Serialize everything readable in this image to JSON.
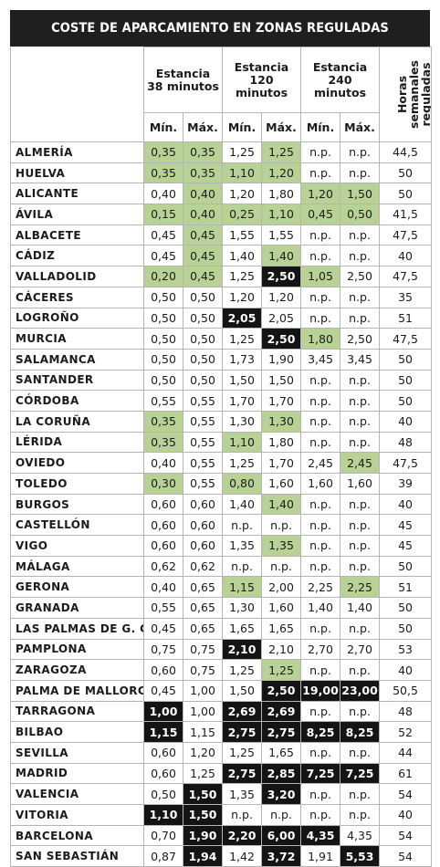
{
  "title": "COSTE DE APARCAMIENTO EN ZONAS REGULADAS",
  "headers": {
    "groups": [
      "Estancia\n38 minutos",
      "Estancia\n120 minutos",
      "Estancia\n240\nminutos"
    ],
    "sub": [
      "Mín.",
      "Máx.",
      "Mín.",
      "Máx.",
      "Mín.",
      "Máx."
    ],
    "hours": "Horas\nsemanales\nreguladas"
  },
  "highlight_legend": {
    "g": "#b8d296",
    "b": "#141414"
  },
  "rows": [
    {
      "city": "ALMERÍA",
      "v": [
        "0,35",
        "0,35",
        "1,25",
        "1,25",
        "n.p.",
        "n.p.",
        "44,5"
      ],
      "h": [
        "g",
        "g",
        "",
        "g",
        "",
        "",
        ""
      ]
    },
    {
      "city": "HUELVA",
      "v": [
        "0,35",
        "0,35",
        "1,10",
        "1,20",
        "n.p.",
        "n.p.",
        "50"
      ],
      "h": [
        "g",
        "g",
        "g",
        "g",
        "",
        "",
        ""
      ]
    },
    {
      "city": "ALICANTE",
      "v": [
        "0,40",
        "0,40",
        "1,20",
        "1,80",
        "1,20",
        "1,50",
        "50"
      ],
      "h": [
        "",
        "g",
        "",
        "",
        "g",
        "g",
        ""
      ]
    },
    {
      "city": "ÁVILA",
      "v": [
        "0,15",
        "0,40",
        "0,25",
        "1,10",
        "0,45",
        "0,50",
        "41,5"
      ],
      "h": [
        "g",
        "g",
        "g",
        "g",
        "g",
        "g",
        ""
      ]
    },
    {
      "city": "ALBACETE",
      "v": [
        "0,45",
        "0,45",
        "1,55",
        "1,55",
        "n.p.",
        "n.p.",
        "47,5"
      ],
      "h": [
        "",
        "g",
        "",
        "",
        "",
        "",
        ""
      ]
    },
    {
      "city": "CÁDIZ",
      "v": [
        "0,45",
        "0,45",
        "1,40",
        "1,40",
        "n.p.",
        "n.p.",
        "40"
      ],
      "h": [
        "",
        "g",
        "",
        "g",
        "",
        "",
        ""
      ]
    },
    {
      "city": "VALLADOLID",
      "v": [
        "0,20",
        "0,45",
        "1,25",
        "2,50",
        "1,05",
        "2,50",
        "47,5"
      ],
      "h": [
        "g",
        "g",
        "",
        "b",
        "g",
        "",
        ""
      ]
    },
    {
      "city": "CÁCERES",
      "v": [
        "0,50",
        "0,50",
        "1,20",
        "1,20",
        "n.p.",
        "n.p.",
        "35"
      ],
      "h": [
        "",
        "",
        "",
        "",
        "",
        "",
        ""
      ]
    },
    {
      "city": "LOGROÑO",
      "v": [
        "0,50",
        "0,50",
        "2,05",
        "2,05",
        "n.p.",
        "n.p.",
        "51"
      ],
      "h": [
        "",
        "",
        "b",
        "",
        "",
        "",
        ""
      ]
    },
    {
      "city": "MURCIA",
      "v": [
        "0,50",
        "0,50",
        "1,25",
        "2,50",
        "1,80",
        "2,50",
        "47,5"
      ],
      "h": [
        "",
        "",
        "",
        "b",
        "g",
        "",
        ""
      ]
    },
    {
      "city": "SALAMANCA",
      "v": [
        "0,50",
        "0,50",
        "1,73",
        "1,90",
        "3,45",
        "3,45",
        "50"
      ],
      "h": [
        "",
        "",
        "",
        "",
        "",
        "",
        ""
      ]
    },
    {
      "city": "SANTANDER",
      "v": [
        "0,50",
        "0,50",
        "1,50",
        "1,50",
        "n.p.",
        "n.p.",
        "50"
      ],
      "h": [
        "",
        "",
        "",
        "",
        "",
        "",
        ""
      ]
    },
    {
      "city": "CÓRDOBA",
      "v": [
        "0,55",
        "0,55",
        "1,70",
        "1,70",
        "n.p.",
        "n.p.",
        "50"
      ],
      "h": [
        "",
        "",
        "",
        "",
        "",
        "",
        ""
      ]
    },
    {
      "city": "LA CORUÑA",
      "v": [
        "0,35",
        "0,55",
        "1,30",
        "1,30",
        "n.p.",
        "n.p.",
        "40"
      ],
      "h": [
        "g",
        "",
        "",
        "g",
        "",
        "",
        ""
      ]
    },
    {
      "city": "LÉRIDA",
      "v": [
        "0,35",
        "0,55",
        "1,10",
        "1,80",
        "n.p.",
        "n.p.",
        "48"
      ],
      "h": [
        "g",
        "",
        "g",
        "",
        "",
        "",
        ""
      ]
    },
    {
      "city": "OVIEDO",
      "v": [
        "0,40",
        "0,55",
        "1,25",
        "1,70",
        "2,45",
        "2,45",
        "47,5"
      ],
      "h": [
        "",
        "",
        "",
        "",
        "",
        "g",
        ""
      ]
    },
    {
      "city": "TOLEDO",
      "v": [
        "0,30",
        "0,55",
        "0,80",
        "1,60",
        "1,60",
        "1,60",
        "39"
      ],
      "h": [
        "g",
        "",
        "g",
        "",
        "",
        "",
        ""
      ]
    },
    {
      "city": "BURGOS",
      "v": [
        "0,60",
        "0,60",
        "1,40",
        "1,40",
        "n.p.",
        "n.p.",
        "40"
      ],
      "h": [
        "",
        "",
        "",
        "g",
        "",
        "",
        ""
      ]
    },
    {
      "city": "CASTELLÓN",
      "v": [
        "0,60",
        "0,60",
        "n.p.",
        "n.p.",
        "n.p.",
        "n.p.",
        "45"
      ],
      "h": [
        "",
        "",
        "",
        "",
        "",
        "",
        ""
      ]
    },
    {
      "city": "VIGO",
      "v": [
        "0,60",
        "0,60",
        "1,35",
        "1,35",
        "n.p.",
        "n.p.",
        "45"
      ],
      "h": [
        "",
        "",
        "",
        "g",
        "",
        "",
        ""
      ]
    },
    {
      "city": "MÁLAGA",
      "v": [
        "0,62",
        "0,62",
        "n.p.",
        "n.p.",
        "n.p.",
        "n.p.",
        "50"
      ],
      "h": [
        "",
        "",
        "",
        "",
        "",
        "",
        ""
      ]
    },
    {
      "city": "GERONA",
      "v": [
        "0,40",
        "0,65",
        "1,15",
        "2,00",
        "2,25",
        "2,25",
        "51"
      ],
      "h": [
        "",
        "",
        "g",
        "",
        "",
        "g",
        ""
      ]
    },
    {
      "city": "GRANADA",
      "v": [
        "0,55",
        "0,65",
        "1,30",
        "1,60",
        "1,40",
        "1,40",
        "50"
      ],
      "h": [
        "",
        "",
        "",
        "",
        "",
        "",
        ""
      ]
    },
    {
      "city": "LAS PALMAS DE G. C.",
      "v": [
        "0,45",
        "0,65",
        "1,65",
        "1,65",
        "n.p.",
        "n.p.",
        "50"
      ],
      "h": [
        "",
        "",
        "",
        "",
        "",
        "",
        ""
      ]
    },
    {
      "city": "PAMPLONA",
      "v": [
        "0,75",
        "0,75",
        "2,10",
        "2,10",
        "2,70",
        "2,70",
        "53"
      ],
      "h": [
        "",
        "",
        "b",
        "",
        "",
        "",
        ""
      ]
    },
    {
      "city": "ZARAGOZA",
      "v": [
        "0,60",
        "0,75",
        "1,25",
        "1,25",
        "n.p.",
        "n.p.",
        "40"
      ],
      "h": [
        "",
        "",
        "",
        "g",
        "",
        "",
        ""
      ]
    },
    {
      "city": "PALMA DE MALLORCA",
      "v": [
        "0,45",
        "1,00",
        "1,50",
        "2,50",
        "19,00",
        "23,00",
        "50,5"
      ],
      "h": [
        "",
        "",
        "",
        "b",
        "b",
        "b",
        ""
      ]
    },
    {
      "city": "TARRAGONA",
      "v": [
        "1,00",
        "1,00",
        "2,69",
        "2,69",
        "n.p.",
        "n.p.",
        "48"
      ],
      "h": [
        "b",
        "",
        "b",
        "b",
        "",
        "",
        ""
      ]
    },
    {
      "city": "BILBAO",
      "v": [
        "1,15",
        "1,15",
        "2,75",
        "2,75",
        "8,25",
        "8,25",
        "52"
      ],
      "h": [
        "b",
        "",
        "b",
        "b",
        "b",
        "b",
        ""
      ]
    },
    {
      "city": "SEVILLA",
      "v": [
        "0,60",
        "1,20",
        "1,25",
        "1,65",
        "n.p.",
        "n.p.",
        "44"
      ],
      "h": [
        "",
        "",
        "",
        "",
        "",
        "",
        ""
      ]
    },
    {
      "city": "MADRID",
      "v": [
        "0,60",
        "1,25",
        "2,75",
        "2,85",
        "7,25",
        "7,25",
        "61"
      ],
      "h": [
        "",
        "",
        "b",
        "b",
        "b",
        "b",
        ""
      ]
    },
    {
      "city": "VALENCIA",
      "v": [
        "0,50",
        "1,50",
        "1,35",
        "3,20",
        "n.p.",
        "n.p.",
        "54"
      ],
      "h": [
        "",
        "b",
        "",
        "b",
        "",
        "",
        ""
      ]
    },
    {
      "city": "VITORIA",
      "v": [
        "1,10",
        "1,50",
        "n.p.",
        "n.p.",
        "n.p.",
        "n.p.",
        "40"
      ],
      "h": [
        "b",
        "b",
        "",
        "",
        "",
        "",
        ""
      ]
    },
    {
      "city": "BARCELONA",
      "v": [
        "0,70",
        "1,90",
        "2,20",
        "6,00",
        "4,35",
        "4,35",
        "54"
      ],
      "h": [
        "",
        "b",
        "b",
        "b",
        "b",
        "",
        ""
      ]
    },
    {
      "city": "SAN SEBASTIÁN",
      "v": [
        "0,87",
        "1,94",
        "1,42",
        "3,72",
        "1,91",
        "5,53",
        "54"
      ],
      "h": [
        "",
        "b",
        "",
        "b",
        "",
        "b",
        ""
      ]
    }
  ]
}
